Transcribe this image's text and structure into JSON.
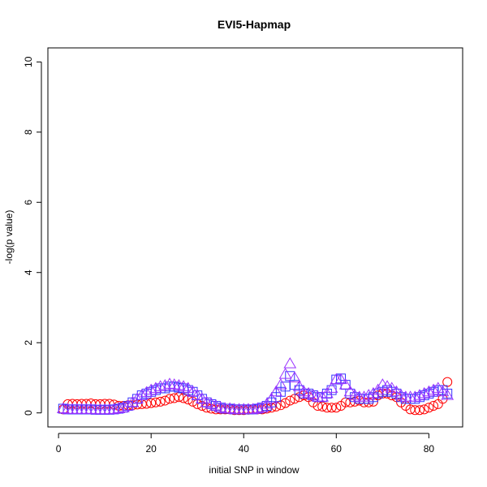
{
  "chart_data": {
    "type": "scatter",
    "title": "EVI5-Hapmap",
    "xlabel": "initial SNP in window",
    "ylabel": "-log(p value)",
    "xlim": [
      -2.3,
      87.3
    ],
    "ylim": [
      -0.4,
      10.4
    ],
    "xticks": [
      "0",
      "20",
      "40",
      "60",
      "80"
    ],
    "yticks": [
      "0",
      "2",
      "4",
      "6",
      "8",
      "10"
    ],
    "grid": false,
    "legend": "none",
    "x": [
      1,
      2,
      3,
      4,
      5,
      6,
      7,
      8,
      9,
      10,
      11,
      12,
      13,
      14,
      15,
      16,
      17,
      18,
      19,
      20,
      21,
      22,
      23,
      24,
      25,
      26,
      27,
      28,
      29,
      30,
      31,
      32,
      33,
      34,
      35,
      36,
      37,
      38,
      39,
      40,
      41,
      42,
      43,
      44,
      45,
      46,
      47,
      48,
      49,
      50,
      51,
      52,
      53,
      54,
      55,
      56,
      57,
      58,
      59,
      60,
      61,
      62,
      63,
      64,
      65,
      66,
      67,
      68,
      69,
      70,
      71,
      72,
      73,
      74,
      75,
      76,
      77,
      78,
      79,
      80,
      81,
      82,
      83,
      84
    ],
    "series": [
      {
        "marker": "circle",
        "color": "#ff0000",
        "values": [
          0.1,
          0.25,
          0.26,
          0.25,
          0.26,
          0.26,
          0.27,
          0.25,
          0.25,
          0.26,
          0.26,
          0.24,
          0.2,
          0.2,
          0.22,
          0.22,
          0.24,
          0.25,
          0.26,
          0.28,
          0.3,
          0.32,
          0.35,
          0.4,
          0.42,
          0.45,
          0.42,
          0.38,
          0.32,
          0.25,
          0.2,
          0.15,
          0.12,
          0.1,
          0.1,
          0.1,
          0.1,
          0.08,
          0.08,
          0.08,
          0.09,
          0.1,
          0.1,
          0.1,
          0.12,
          0.15,
          0.18,
          0.22,
          0.28,
          0.35,
          0.4,
          0.45,
          0.5,
          0.45,
          0.3,
          0.2,
          0.18,
          0.15,
          0.15,
          0.15,
          0.2,
          0.3,
          0.3,
          0.32,
          0.35,
          0.3,
          0.3,
          0.32,
          0.5,
          0.55,
          0.55,
          0.5,
          0.45,
          0.3,
          0.2,
          0.1,
          0.08,
          0.08,
          0.1,
          0.15,
          0.2,
          0.25,
          0.4,
          0.88
        ]
      },
      {
        "marker": "square",
        "color": "#3333ff",
        "values": [
          0.12,
          0.1,
          0.1,
          0.1,
          0.1,
          0.1,
          0.1,
          0.09,
          0.09,
          0.09,
          0.09,
          0.1,
          0.12,
          0.15,
          0.2,
          0.3,
          0.4,
          0.5,
          0.55,
          0.6,
          0.65,
          0.7,
          0.7,
          0.75,
          0.75,
          0.72,
          0.7,
          0.65,
          0.6,
          0.5,
          0.4,
          0.3,
          0.25,
          0.2,
          0.15,
          0.12,
          0.12,
          0.1,
          0.1,
          0.1,
          0.1,
          0.1,
          0.12,
          0.15,
          0.2,
          0.3,
          0.45,
          0.6,
          0.75,
          1.05,
          0.8,
          0.65,
          0.55,
          0.55,
          0.5,
          0.45,
          0.45,
          0.55,
          0.65,
          0.95,
          0.98,
          0.8,
          0.55,
          0.45,
          0.4,
          0.4,
          0.4,
          0.45,
          0.55,
          0.6,
          0.65,
          0.6,
          0.55,
          0.45,
          0.4,
          0.4,
          0.4,
          0.45,
          0.5,
          0.55,
          0.6,
          0.65,
          0.65,
          0.55
        ]
      },
      {
        "marker": "triangle",
        "color": "#9933ff",
        "values": [
          0.12,
          0.1,
          0.1,
          0.1,
          0.1,
          0.1,
          0.1,
          0.09,
          0.09,
          0.09,
          0.09,
          0.1,
          0.12,
          0.15,
          0.2,
          0.3,
          0.4,
          0.5,
          0.58,
          0.65,
          0.7,
          0.75,
          0.78,
          0.82,
          0.8,
          0.78,
          0.75,
          0.7,
          0.6,
          0.5,
          0.4,
          0.3,
          0.25,
          0.2,
          0.15,
          0.12,
          0.12,
          0.1,
          0.1,
          0.1,
          0.1,
          0.1,
          0.12,
          0.15,
          0.25,
          0.4,
          0.6,
          0.8,
          1.1,
          1.4,
          1.0,
          0.75,
          0.6,
          0.55,
          0.5,
          0.45,
          0.45,
          0.55,
          0.7,
          0.95,
          0.95,
          0.8,
          0.6,
          0.5,
          0.45,
          0.45,
          0.5,
          0.55,
          0.65,
          0.8,
          0.75,
          0.7,
          0.6,
          0.5,
          0.45,
          0.45,
          0.45,
          0.5,
          0.55,
          0.6,
          0.65,
          0.7,
          0.6,
          0.5
        ]
      }
    ]
  }
}
